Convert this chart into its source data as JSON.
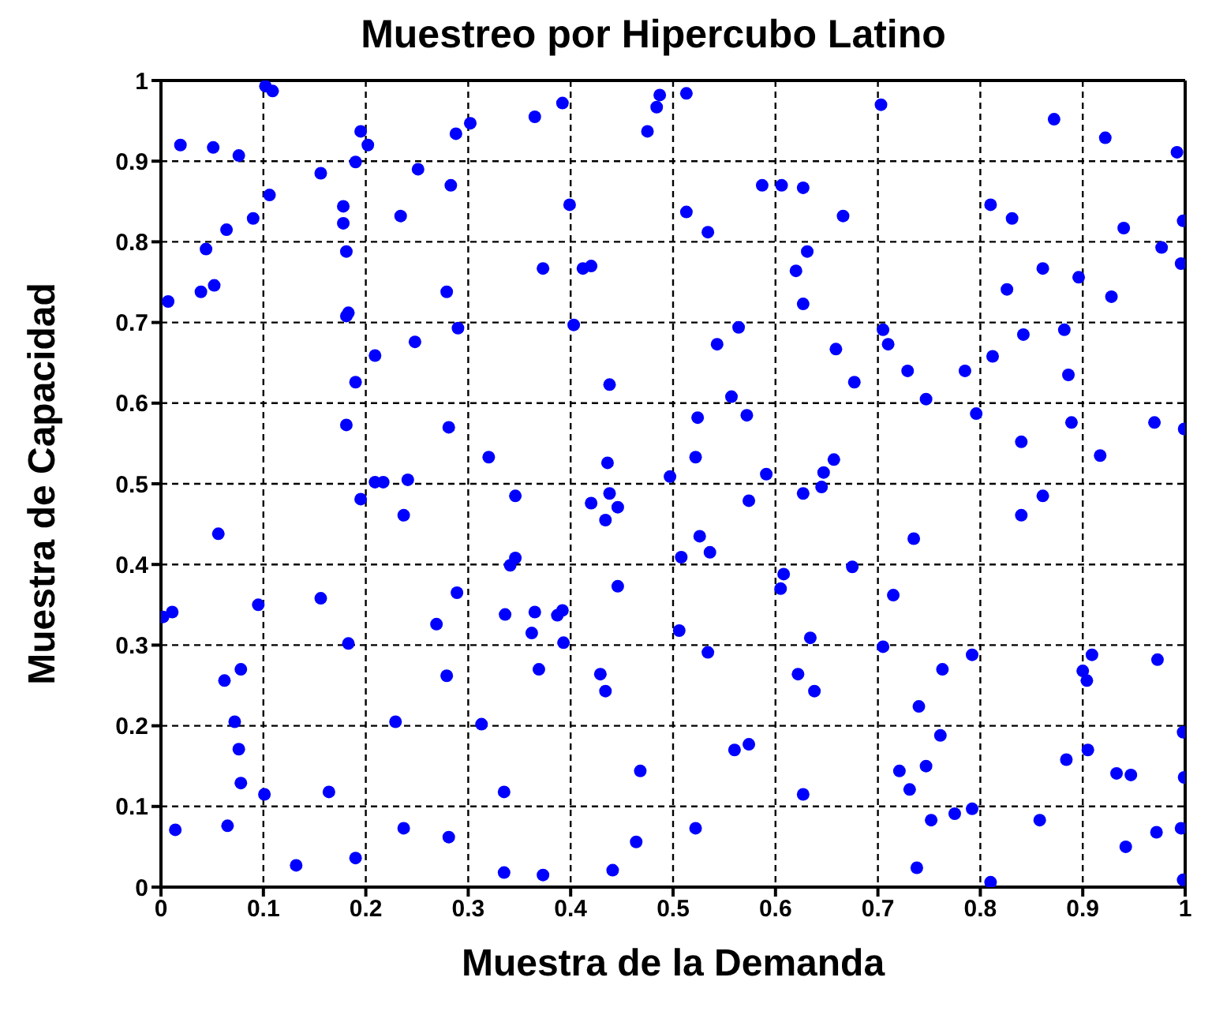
{
  "chart_data": {
    "type": "scatter",
    "title": "Muestreo por Hipercubo Latino",
    "xlabel": "Muestra de la Demanda",
    "ylabel": "Muestra de Capacidad",
    "xlim": [
      0,
      1
    ],
    "ylim": [
      0,
      1
    ],
    "xticks": [
      0,
      0.1,
      0.2,
      0.3,
      0.4,
      0.5,
      0.6,
      0.7,
      0.8,
      0.9,
      1
    ],
    "yticks": [
      0,
      0.1,
      0.2,
      0.3,
      0.4,
      0.5,
      0.6,
      0.7,
      0.8,
      0.9,
      1
    ],
    "grid": true,
    "marker": "circle",
    "series": [
      {
        "color": "#0000ff",
        "x": [
          0.019,
          0.051,
          0.076,
          0.102,
          0.109,
          0.106,
          0.09,
          0.064,
          0.044,
          0.052,
          0.039,
          0.007,
          0.195,
          0.202,
          0.19,
          0.156,
          0.178,
          0.178,
          0.181,
          0.183,
          0.181,
          0.288,
          0.302,
          0.251,
          0.283,
          0.234,
          0.279,
          0.29,
          0.248,
          0.209,
          0.19,
          0.181,
          0.281,
          0.32,
          0.365,
          0.392,
          0.487,
          0.484,
          0.475,
          0.513,
          0.587,
          0.606,
          0.627,
          0.666,
          0.399,
          0.513,
          0.534,
          0.631,
          0.62,
          0.627,
          0.373,
          0.412,
          0.42,
          0.403,
          0.564,
          0.543,
          0.659,
          0.438,
          0.557,
          0.572,
          0.524,
          0.436,
          0.522,
          0.497,
          0.591,
          0.657,
          0.647,
          0.703,
          0.872,
          0.922,
          0.992,
          0.81,
          0.831,
          0.94,
          0.998,
          0.977,
          0.996,
          0.861,
          0.896,
          0.826,
          0.928,
          0.705,
          0.71,
          0.842,
          0.882,
          0.677,
          0.729,
          0.785,
          0.812,
          0.886,
          0.747,
          0.796,
          0.889,
          0.97,
          0.999,
          0.84,
          0.917,
          0.209,
          0.217,
          0.241,
          0.195,
          0.237,
          0.056,
          0.289,
          0.156,
          0.095,
          0.011,
          0.002,
          0.269,
          0.183,
          0.078,
          0.062,
          0.279,
          0.072,
          0.229,
          0.313,
          0.076,
          0.078,
          0.101,
          0.164,
          0.335,
          0.014,
          0.065,
          0.237,
          0.281,
          0.132,
          0.19,
          0.335,
          0.346,
          0.42,
          0.438,
          0.446,
          0.434,
          0.574,
          0.627,
          0.645,
          0.526,
          0.536,
          0.508,
          0.341,
          0.346,
          0.608,
          0.605,
          0.446,
          0.336,
          0.365,
          0.387,
          0.392,
          0.362,
          0.393,
          0.506,
          0.534,
          0.634,
          0.369,
          0.429,
          0.434,
          0.622,
          0.638,
          0.56,
          0.574,
          0.468,
          0.627,
          0.522,
          0.464,
          0.373,
          0.441,
          0.861,
          0.84,
          0.735,
          0.675,
          0.715,
          0.705,
          0.792,
          0.763,
          0.909,
          0.9,
          0.904,
          0.973,
          0.74,
          0.761,
          0.998,
          0.721,
          0.747,
          0.731,
          0.884,
          0.905,
          0.933,
          0.947,
          0.999,
          0.752,
          0.775,
          0.792,
          0.858,
          0.942,
          0.972,
          0.996,
          0.738,
          0.81,
          0.998
        ],
        "values": [
          0.92,
          0.917,
          0.907,
          0.993,
          0.987,
          0.858,
          0.829,
          0.815,
          0.791,
          0.746,
          0.738,
          0.726,
          0.937,
          0.92,
          0.899,
          0.885,
          0.844,
          0.823,
          0.788,
          0.712,
          0.708,
          0.934,
          0.947,
          0.89,
          0.87,
          0.832,
          0.738,
          0.693,
          0.676,
          0.659,
          0.626,
          0.573,
          0.57,
          0.533,
          0.955,
          0.972,
          0.982,
          0.967,
          0.937,
          0.984,
          0.87,
          0.87,
          0.867,
          0.832,
          0.846,
          0.837,
          0.812,
          0.788,
          0.764,
          0.723,
          0.767,
          0.767,
          0.77,
          0.697,
          0.694,
          0.673,
          0.667,
          0.623,
          0.608,
          0.585,
          0.582,
          0.526,
          0.533,
          0.509,
          0.512,
          0.53,
          0.514,
          0.97,
          0.952,
          0.929,
          0.911,
          0.846,
          0.829,
          0.817,
          0.826,
          0.793,
          0.773,
          0.767,
          0.756,
          0.741,
          0.732,
          0.691,
          0.673,
          0.685,
          0.691,
          0.626,
          0.64,
          0.64,
          0.658,
          0.635,
          0.605,
          0.587,
          0.576,
          0.576,
          0.568,
          0.552,
          0.535,
          0.502,
          0.502,
          0.505,
          0.481,
          0.461,
          0.438,
          0.365,
          0.358,
          0.35,
          0.341,
          0.335,
          0.326,
          0.302,
          0.27,
          0.256,
          0.262,
          0.205,
          0.205,
          0.202,
          0.171,
          0.129,
          0.115,
          0.118,
          0.118,
          0.071,
          0.076,
          0.073,
          0.062,
          0.027,
          0.036,
          0.018,
          0.485,
          0.476,
          0.488,
          0.471,
          0.455,
          0.479,
          0.488,
          0.496,
          0.435,
          0.415,
          0.409,
          0.399,
          0.408,
          0.388,
          0.37,
          0.373,
          0.338,
          0.341,
          0.337,
          0.343,
          0.315,
          0.303,
          0.318,
          0.291,
          0.309,
          0.27,
          0.264,
          0.243,
          0.264,
          0.243,
          0.17,
          0.177,
          0.144,
          0.115,
          0.073,
          0.056,
          0.015,
          0.021,
          0.485,
          0.461,
          0.432,
          0.397,
          0.362,
          0.298,
          0.288,
          0.27,
          0.288,
          0.268,
          0.256,
          0.282,
          0.224,
          0.188,
          0.192,
          0.144,
          0.15,
          0.121,
          0.158,
          0.17,
          0.141,
          0.139,
          0.136,
          0.083,
          0.091,
          0.097,
          0.083,
          0.05,
          0.068,
          0.073,
          0.024,
          0.006,
          0.009
        ]
      }
    ]
  }
}
